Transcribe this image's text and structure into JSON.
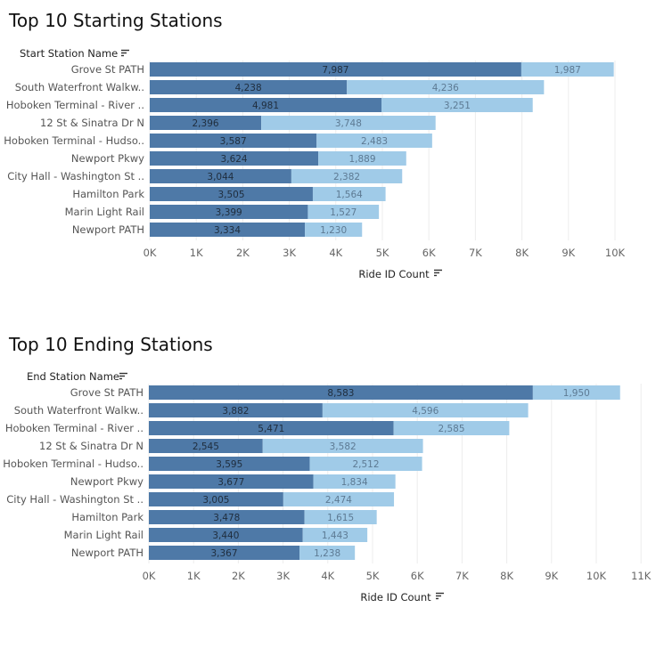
{
  "colors": {
    "series1": "#4e79a7",
    "series2": "#a0cbe8",
    "grid": "#ececec"
  },
  "icons": {
    "sort": "sort-descending-icon"
  },
  "chart_data": [
    {
      "type": "bar",
      "orientation": "horizontal",
      "stacked": true,
      "title": "Top 10 Starting Stations",
      "row_header": "Start Station Name",
      "xlabel": "Ride ID Count",
      "xlim": [
        0,
        10500
      ],
      "tick_values": [
        0,
        1000,
        2000,
        3000,
        4000,
        5000,
        6000,
        7000,
        8000,
        9000,
        10000
      ],
      "tick_labels": [
        "0K",
        "1K",
        "2K",
        "3K",
        "4K",
        "5K",
        "6K",
        "7K",
        "8K",
        "9K",
        "10K"
      ],
      "grid": true,
      "categories": [
        "Grove St PATH",
        "South Waterfront Walkw..",
        "Hoboken Terminal - River ..",
        "12 St & Sinatra Dr N",
        "Hoboken Terminal - Hudso..",
        "Newport Pkwy",
        "City Hall - Washington St ..",
        "Hamilton Park",
        "Marin Light Rail",
        "Newport PATH"
      ],
      "series": [
        {
          "values": [
            7987,
            4238,
            4981,
            2396,
            3587,
            3624,
            3044,
            3505,
            3399,
            3334
          ],
          "labels": [
            "7,987",
            "4,238",
            "4,981",
            "2,396",
            "3,587",
            "3,624",
            "3,044",
            "3,505",
            "3,399",
            "3,334"
          ]
        },
        {
          "values": [
            1987,
            4236,
            3251,
            3748,
            2483,
            1889,
            2382,
            1564,
            1527,
            1230
          ],
          "labels": [
            "1,987",
            "4,236",
            "3,251",
            "3,748",
            "2,483",
            "1,889",
            "2,382",
            "1,564",
            "1,527",
            "1,230"
          ]
        }
      ]
    },
    {
      "type": "bar",
      "orientation": "horizontal",
      "stacked": true,
      "title": "Top 10  Ending Stations",
      "row_header": "End Station Name",
      "xlabel": "Ride ID Count",
      "xlim": [
        0,
        11000
      ],
      "tick_values": [
        0,
        1000,
        2000,
        3000,
        4000,
        5000,
        6000,
        7000,
        8000,
        9000,
        10000,
        11000
      ],
      "tick_labels": [
        "0K",
        "1K",
        "2K",
        "3K",
        "4K",
        "5K",
        "6K",
        "7K",
        "8K",
        "9K",
        "10K",
        "11K"
      ],
      "grid": true,
      "categories": [
        "Grove St PATH",
        "South Waterfront Walkw..",
        "Hoboken Terminal - River ..",
        "12 St & Sinatra Dr N",
        "Hoboken Terminal - Hudso..",
        "Newport Pkwy",
        "City Hall - Washington St ..",
        "Hamilton Park",
        "Marin Light Rail",
        "Newport PATH"
      ],
      "series": [
        {
          "values": [
            8583,
            3882,
            5471,
            2545,
            3595,
            3677,
            3005,
            3478,
            3440,
            3367
          ],
          "labels": [
            "8,583",
            "3,882",
            "5,471",
            "2,545",
            "3,595",
            "3,677",
            "3,005",
            "3,478",
            "3,440",
            "3,367"
          ]
        },
        {
          "values": [
            1950,
            4596,
            2585,
            3582,
            2512,
            1834,
            2474,
            1615,
            1443,
            1238
          ],
          "labels": [
            "1,950",
            "4,596",
            "2,585",
            "3,582",
            "2,512",
            "1,834",
            "2,474",
            "1,615",
            "1,443",
            "1,238"
          ]
        }
      ]
    }
  ]
}
